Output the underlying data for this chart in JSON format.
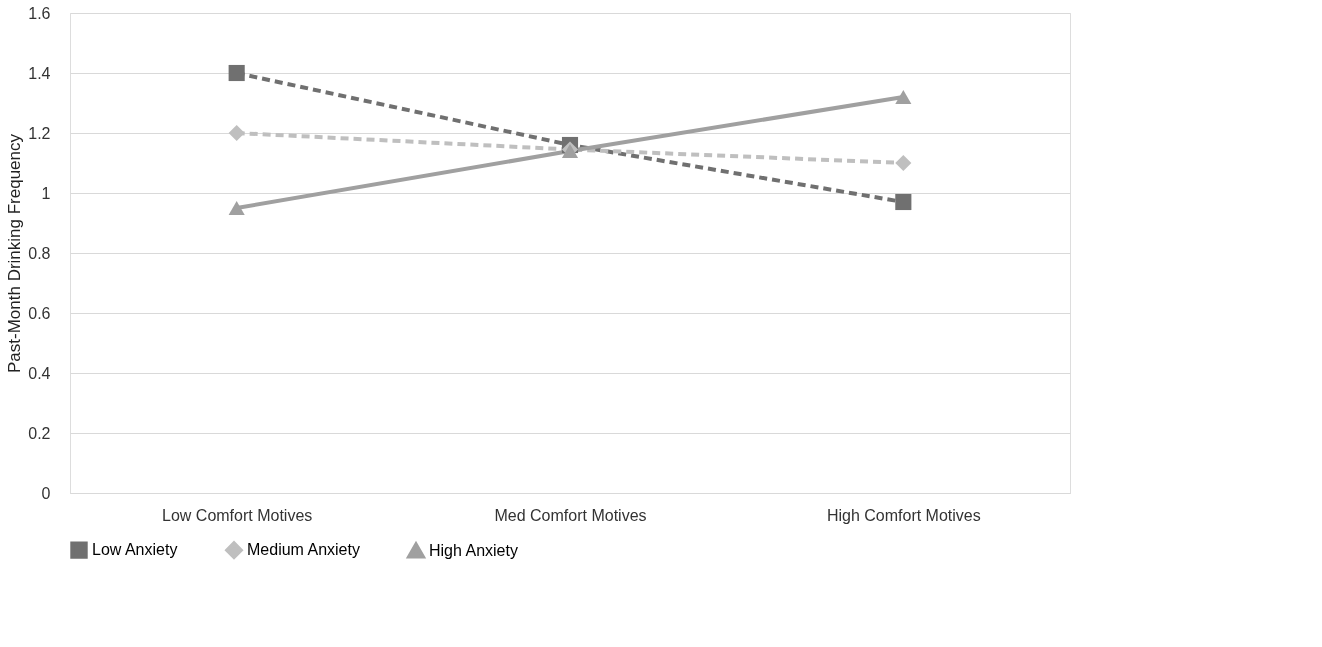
{
  "chart_data": {
    "type": "line",
    "ylabel": "Past-Month Drinking Frequency",
    "categories": [
      "Low Comfort Motives",
      "Med Comfort Motives",
      "High Comfort Motives"
    ],
    "series": [
      {
        "name": "Low Anxiety",
        "color": "#707070",
        "values": [
          1.4,
          1.16,
          0.97
        ],
        "marker": "square",
        "line_style": "dashed"
      },
      {
        "name": "Medium Anxiety",
        "color": "#bfbfbf",
        "values": [
          1.2,
          1.145,
          1.1
        ],
        "marker": "diamond",
        "line_style": "dashed"
      },
      {
        "name": "High Anxiety",
        "color": "#a0a0a0",
        "values": [
          0.95,
          1.14,
          1.32
        ],
        "marker": "triangle",
        "line_style": "solid"
      }
    ],
    "ylim": [
      0,
      1.6
    ],
    "yticks": [
      0,
      0.2,
      0.4,
      0.6,
      0.8,
      1,
      1.2,
      1.4,
      1.6
    ],
    "grid": "y",
    "legend": "bottom"
  }
}
